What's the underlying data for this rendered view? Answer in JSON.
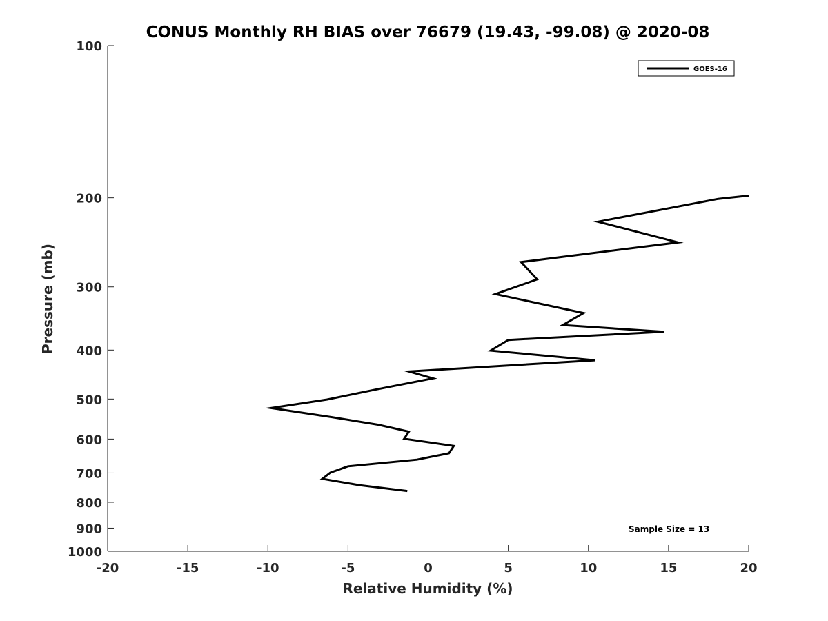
{
  "chart_data": {
    "type": "line",
    "title": "CONUS Monthly RH BIAS over 76679 (19.43, -99.08) @ 2020-08",
    "xlabel": "Relative Humidity (%)",
    "ylabel": "Pressure (mb)",
    "xlim": [
      -20,
      20
    ],
    "ylim": [
      1000,
      100
    ],
    "y_scale": "log",
    "y_reversed": true,
    "grid": false,
    "legend_position": "top-right",
    "x_ticks": [
      -20,
      -15,
      -10,
      -5,
      0,
      5,
      10,
      15,
      20
    ],
    "x_tick_labels": [
      "-20",
      "-15",
      "-10",
      "-5",
      "0",
      "5",
      "10",
      "15",
      "20"
    ],
    "y_ticks": [
      100,
      200,
      300,
      400,
      500,
      600,
      700,
      800,
      900,
      1000
    ],
    "y_tick_labels": [
      "100",
      "200",
      "300",
      "400",
      "500",
      "600",
      "700",
      "800",
      "900",
      "1000"
    ],
    "series": [
      {
        "name": "GOES-16",
        "color": "#000000",
        "x": [
          20.0,
          18.1,
          10.6,
          15.6,
          5.8,
          6.8,
          4.2,
          9.7,
          8.4,
          14.7,
          5.0,
          3.9,
          10.4,
          -1.2,
          0.3,
          -3.3,
          -6.3,
          -9.8,
          -6.0,
          -3.1,
          -1.2,
          -1.5,
          1.6,
          1.3,
          -0.7,
          -5.0,
          -6.1,
          -6.6,
          -4.3,
          -1.3
        ],
        "y": [
          198,
          201,
          223,
          245,
          268,
          290,
          310,
          338,
          357,
          368,
          382,
          401,
          419,
          441,
          455,
          479,
          501,
          521,
          543,
          562,
          580,
          599,
          619,
          640,
          659,
          679,
          699,
          719,
          740,
          760
        ]
      }
    ],
    "annotations": [
      "Sample Size = 13"
    ]
  }
}
